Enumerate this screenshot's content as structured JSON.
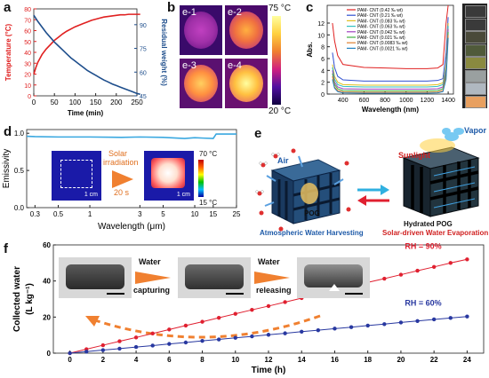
{
  "panels": {
    "a": {
      "label": "a",
      "chart_data": {
        "type": "line",
        "xlabel": "Time (min)",
        "ylabel_left": "Temperature (°C)",
        "ylabel_right": "Residual weight (%)",
        "xlim": [
          0,
          250
        ],
        "ylim_left": [
          0,
          80
        ],
        "ylim_right": [
          45,
          100
        ],
        "xticks": [
          "0",
          "50",
          "100",
          "150",
          "200",
          "250"
        ],
        "yticks_left": [
          "0",
          "10",
          "20",
          "30",
          "40",
          "50",
          "60",
          "70",
          "80"
        ],
        "yticks_right": [
          "45",
          "60",
          "75",
          "90"
        ],
        "series": [
          {
            "axis": "left",
            "color": "#e02020",
            "x": [
              0,
              5,
              10,
              20,
              30,
              40,
              50,
              60,
              70,
              80,
              90,
              100,
              110,
              120,
              130,
              140,
              150,
              160,
              170,
              180,
              190,
              200,
              210,
              220,
              230,
              240,
              250,
              258
            ],
            "y": [
              20,
              26,
              31,
              38,
              43,
              47,
              51,
              54,
              57,
              59.5,
              61.5,
              63.5,
              65,
              66.5,
              68,
              69.5,
              70.5,
              71.5,
              72.5,
              73,
              73.5,
              74,
              74.5,
              74.5,
              75,
              75,
              75,
              75
            ]
          },
          {
            "axis": "right",
            "color": "#1e4e8c",
            "x": [
              0,
              10,
              20,
              30,
              40,
              50,
              60,
              70,
              80,
              90,
              100,
              110,
              120,
              130,
              140,
              150,
              160,
              170,
              180,
              190,
              200,
              210,
              220,
              230,
              240,
              250,
              258
            ],
            "y": [
              96,
              92,
              88.5,
              85,
              82,
              79,
              76.5,
              74,
              71.5,
              69,
              67,
              65,
              63,
              61,
              59.5,
              58,
              56.5,
              55,
              53.8,
              52.5,
              51.5,
              50.5,
              49.5,
              48.5,
              47.5,
              46.5,
              46
            ]
          }
        ]
      }
    },
    "b": {
      "label": "b",
      "images": [
        "e-1",
        "e-2",
        "e-3",
        "e-4"
      ],
      "colorbar_max": "75 °C",
      "colorbar_min": "20 °C",
      "colorbar_colors": [
        "#ffffa0",
        "#ffd040",
        "#f08030",
        "#d02080",
        "#5010a0",
        "#100040"
      ]
    },
    "c": {
      "label": "c",
      "chart_data": {
        "type": "line",
        "xlabel": "Wavelength (nm)",
        "ylabel": "Abs.",
        "xlim": [
          250,
          1450
        ],
        "ylim": [
          0,
          15
        ],
        "xticks": [
          "400",
          "600",
          "800",
          "1000",
          "1200",
          "1400"
        ],
        "yticks": [
          "0",
          "2",
          "4",
          "6",
          "8",
          "10",
          "12"
        ],
        "x": [
          300,
          320,
          350,
          400,
          600,
          800,
          1000,
          1200,
          1300,
          1350,
          1380,
          1400
        ],
        "series": [
          {
            "name": "PAM- CNT (0.42 ‰ wt)",
            "color": "#e02020",
            "y": [
              12,
              9,
              6.5,
              5,
              4.5,
              4.4,
              4.3,
              4.3,
              4.4,
              5,
              12,
              15
            ]
          },
          {
            "name": "PAM- CNT (0.21 ‰ wt)",
            "color": "#3050d0",
            "y": [
              7,
              4.5,
              3,
              2.4,
              2.2,
              2.2,
              2.2,
              2.2,
              2.3,
              2.6,
              7,
              13
            ]
          },
          {
            "name": "PAM- CNT (0.083 ‰ wt)",
            "color": "#e0c020",
            "y": [
              5,
              3,
              2,
              1.6,
              1.5,
              1.5,
              1.5,
              1.5,
              1.6,
              1.9,
              5,
              12
            ]
          },
          {
            "name": "PAM- CNT (0.063 ‰ wt)",
            "color": "#30c0c0",
            "y": [
              4.5,
              2.5,
              1.6,
              1.3,
              1.2,
              1.2,
              1.2,
              1.2,
              1.3,
              1.6,
              4.5,
              11.5
            ]
          },
          {
            "name": "PAM- CNT (0.042 ‰ wt)",
            "color": "#a040c0",
            "y": [
              4,
              2,
              1.2,
              0.9,
              0.85,
              0.85,
              0.85,
              0.85,
              0.9,
              1.2,
              4,
              11
            ]
          },
          {
            "name": "PAM- CNT (0.021 ‰ wt)",
            "color": "#40b040",
            "y": [
              3.5,
              1.6,
              0.9,
              0.6,
              0.55,
              0.55,
              0.55,
              0.55,
              0.6,
              0.9,
              3.5,
              10.5
            ]
          },
          {
            "name": "PAM- CNT (0.0083 ‰ wt)",
            "color": "#e08030",
            "y": [
              3,
              1.2,
              0.6,
              0.35,
              0.3,
              0.3,
              0.3,
              0.3,
              0.35,
              0.6,
              3,
              10
            ]
          },
          {
            "name": "PAM- CNT (0.0021 ‰ wt)",
            "color": "#2080c0",
            "y": [
              2.5,
              1,
              0.4,
              0.2,
              0.15,
              0.15,
              0.15,
              0.15,
              0.2,
              0.4,
              2.5,
              9.5
            ]
          }
        ]
      },
      "vial_colors": [
        "#3a3a3a",
        "#3a3a3a",
        "#4a4a3a",
        "#505a3a",
        "#8a8a40",
        "#9aa0a0",
        "#b0b8c0",
        "#e8a060"
      ]
    },
    "d": {
      "label": "d",
      "chart_data": {
        "type": "line",
        "xlabel": "Wavelength (μm)",
        "ylabel": "Emissivity",
        "xscale": "log",
        "xlim": [
          0.25,
          25
        ],
        "ylim": [
          0,
          1.05
        ],
        "xticks": [
          "0.3",
          "0.5",
          "1",
          "3",
          "5",
          "10",
          "15",
          "25"
        ],
        "yticks": [
          "0.0",
          "0.5",
          "1.0"
        ],
        "x": [
          0.25,
          0.3,
          0.5,
          1,
          2,
          3,
          5,
          8,
          10,
          12,
          15,
          16,
          18,
          20,
          25
        ],
        "y": [
          0.96,
          0.955,
          0.95,
          0.95,
          0.945,
          0.95,
          0.945,
          0.93,
          0.94,
          0.935,
          0.93,
          0.99,
          0.99,
          0.99,
          0.99
        ],
        "color": "#3aa8e0"
      },
      "inset": {
        "arrow_text_1": "Solar",
        "arrow_text_2": "irradiation",
        "arrow_text_3": "20 s",
        "scale_left": "1 cm",
        "scale_right": "1 cm",
        "colorbar_max": "70 °C",
        "colorbar_min": "15 °C"
      }
    },
    "e": {
      "label": "e",
      "air": "Air",
      "pog": "POG",
      "hydrated": "Hydrated POG",
      "sunlight": "Sunlight",
      "vapor": "Vapor",
      "caption_left": "Atmospheric Water Harvesting",
      "caption_right": "Solar-driven Water Evaporation",
      "caption_left_color": "#1e5aa8",
      "caption_right_color": "#d02020"
    },
    "f": {
      "label": "f",
      "chart_data": {
        "type": "line",
        "xlabel": "Time (h)",
        "ylabel_1": "Collected water",
        "ylabel_2": "(L kg⁻¹)",
        "xlim": [
          -1,
          25
        ],
        "ylim": [
          0,
          60
        ],
        "xticks": [
          "0",
          "2",
          "4",
          "6",
          "8",
          "10",
          "12",
          "14",
          "16",
          "18",
          "20",
          "22",
          "24"
        ],
        "yticks": [
          "0",
          "20",
          "40",
          "60"
        ],
        "x": [
          0,
          1,
          2,
          3,
          4,
          5,
          6,
          7,
          8,
          9,
          10,
          11,
          12,
          13,
          14,
          15,
          16,
          17,
          18,
          19,
          20,
          21,
          22,
          23,
          24
        ],
        "series": [
          {
            "name": "RH = 90%",
            "color": "#e02030",
            "y": [
              0,
              2.2,
              4.4,
              6.6,
              8.7,
              10.9,
              13.1,
              15.3,
              17.4,
              19.6,
              21.8,
              24,
              26.1,
              28.3,
              30.5,
              32.6,
              34.8,
              37,
              39.2,
              41.3,
              43.5,
              45.7,
              47.8,
              50,
              52
            ]
          },
          {
            "name": "RH = 60%",
            "color": "#2838a0",
            "y": [
              0,
              0.85,
              1.7,
              2.5,
              3.4,
              4.2,
              5.1,
              5.9,
              6.8,
              7.6,
              8.5,
              9.3,
              10.2,
              11,
              11.9,
              12.7,
              13.6,
              14.4,
              15.3,
              16.1,
              17,
              17.8,
              18.7,
              19.5,
              20.3
            ]
          }
        ]
      },
      "step1": "Water",
      "step1b": "capturing",
      "step2": "Water",
      "step2b": "releasing"
    }
  }
}
